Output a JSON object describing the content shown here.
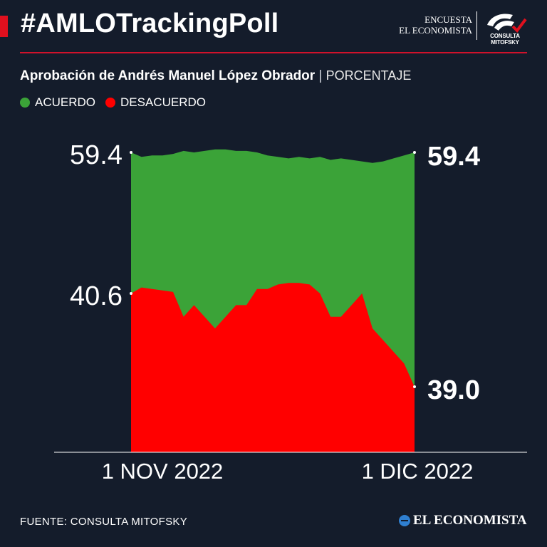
{
  "header": {
    "title": "#AMLOTrackingPoll",
    "logo_line1": "ENCUESTA",
    "logo_line2": "EL ECONOMISTA",
    "partner_logo_label": "CONSULTA MITOFSKY",
    "accent_color": "#e0101e"
  },
  "subtitle": {
    "main": "Aprobación de Andrés Manuel López Obrador",
    "separator": "|",
    "unit": "PORCENTAJE"
  },
  "legend": [
    {
      "label": "ACUERDO",
      "color": "#3ba338"
    },
    {
      "label": "DESACUERDO",
      "color": "#ff0000"
    }
  ],
  "chart_data": {
    "type": "area",
    "xlabel": "",
    "ylabel": "",
    "x_tick_labels": [
      "1 NOV 2022",
      "1 DIC 2022"
    ],
    "left_labels": [
      "59.4",
      "40.6"
    ],
    "right_labels": [
      "59.4",
      "39.0"
    ],
    "series": [
      {
        "name": "ACUERDO",
        "color": "#3ba338",
        "values": [
          59.4,
          58.8,
          59.0,
          59.0,
          59.2,
          59.6,
          59.4,
          59.6,
          59.8,
          59.8,
          59.6,
          59.6,
          59.4,
          59.0,
          58.8,
          58.6,
          58.8,
          58.6,
          58.8,
          58.4,
          58.6,
          58.4,
          58.2,
          58.0,
          58.2,
          58.6,
          59.0,
          59.4
        ]
      },
      {
        "name": "DESACUERDO",
        "color": "#ff0000",
        "values": [
          40.6,
          41.4,
          41.2,
          41.0,
          40.8,
          40.2,
          40.4,
          40.2,
          40.0,
          40.2,
          40.4,
          40.4,
          41.2,
          41.2,
          41.8,
          42.0,
          42.0,
          41.8,
          40.6,
          40.2,
          40.2,
          40.4,
          40.6,
          40.0,
          39.8,
          39.6,
          39.4,
          39.0
        ]
      }
    ]
  },
  "footer": {
    "source": "FUENTE: CONSULTA MITOFSKY",
    "brand": "EL ECONOMISTA"
  }
}
